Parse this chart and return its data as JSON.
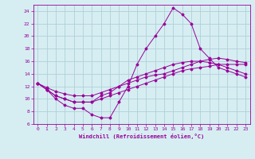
{
  "xlabel": "Windchill (Refroidissement éolien,°C)",
  "background_color": "#d6eef2",
  "grid_color": "#b0d0d8",
  "line_color": "#990099",
  "xlim": [
    -0.5,
    23.5
  ],
  "ylim": [
    6,
    25
  ],
  "xticks": [
    0,
    1,
    2,
    3,
    4,
    5,
    6,
    7,
    8,
    9,
    10,
    11,
    12,
    13,
    14,
    15,
    16,
    17,
    18,
    19,
    20,
    21,
    22,
    23
  ],
  "yticks": [
    6,
    8,
    10,
    12,
    14,
    16,
    18,
    20,
    22,
    24
  ],
  "series1_x": [
    0,
    1,
    2,
    3,
    4,
    5,
    6,
    7,
    8,
    9,
    10,
    11,
    12,
    13,
    14,
    15,
    16,
    17,
    18,
    19,
    20,
    21,
    22,
    23
  ],
  "series1_y": [
    12.5,
    11.5,
    10.0,
    9.0,
    8.5,
    8.5,
    7.5,
    7.0,
    7.0,
    9.5,
    12.0,
    15.5,
    18.0,
    20.0,
    22.0,
    24.5,
    23.5,
    22.0,
    18.0,
    16.5,
    15.0,
    14.5,
    14.0,
    13.5
  ],
  "series2_x": [
    0,
    1,
    2,
    3,
    4,
    5,
    6,
    7,
    8,
    9,
    10,
    11,
    12,
    13,
    14,
    15,
    16,
    17,
    18,
    19,
    20,
    21,
    22,
    23
  ],
  "series2_y": [
    12.5,
    11.8,
    11.2,
    10.8,
    10.5,
    10.5,
    10.5,
    11.0,
    11.5,
    12.0,
    12.5,
    13.0,
    13.5,
    13.8,
    14.0,
    14.5,
    15.0,
    15.5,
    16.0,
    16.3,
    16.5,
    16.3,
    16.0,
    15.8
  ],
  "series3_x": [
    0,
    1,
    2,
    3,
    4,
    5,
    6,
    7,
    8,
    9,
    10,
    11,
    12,
    13,
    14,
    15,
    16,
    17,
    18,
    19,
    20,
    21,
    22,
    23
  ],
  "series3_y": [
    12.5,
    11.5,
    10.5,
    10.0,
    9.5,
    9.5,
    9.5,
    10.0,
    10.5,
    11.0,
    11.5,
    12.0,
    12.5,
    13.0,
    13.5,
    14.0,
    14.5,
    14.8,
    15.0,
    15.2,
    15.5,
    15.5,
    15.5,
    15.5
  ],
  "series4_x": [
    0,
    1,
    2,
    3,
    4,
    5,
    6,
    7,
    8,
    9,
    10,
    11,
    12,
    13,
    14,
    15,
    16,
    17,
    18,
    19,
    20,
    21,
    22,
    23
  ],
  "series4_y": [
    12.5,
    11.5,
    10.5,
    10.0,
    9.5,
    9.5,
    9.5,
    10.5,
    11.0,
    12.0,
    13.0,
    13.5,
    14.0,
    14.5,
    15.0,
    15.5,
    15.8,
    16.0,
    16.0,
    15.8,
    15.5,
    15.0,
    14.5,
    14.0
  ]
}
